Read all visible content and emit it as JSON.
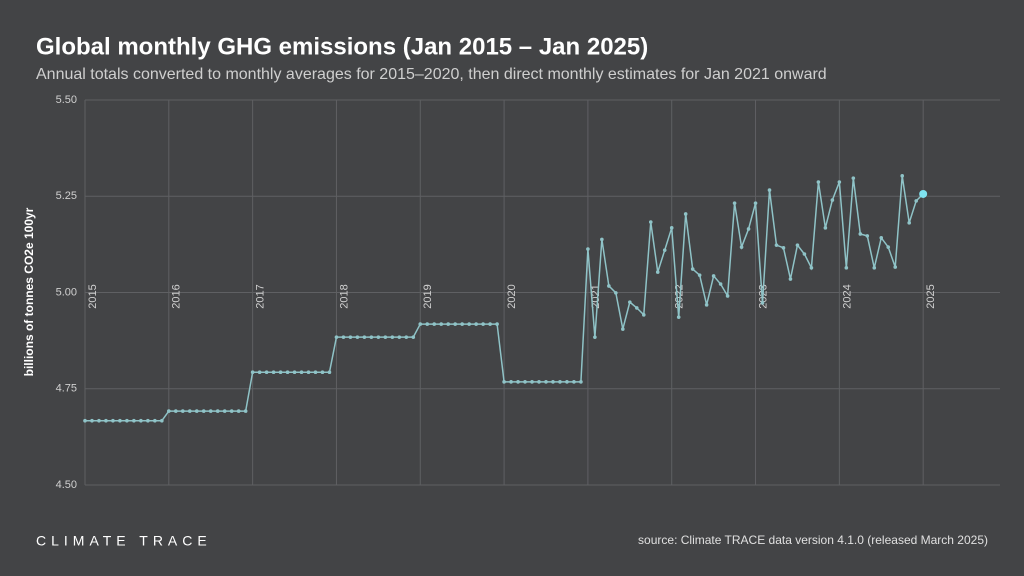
{
  "chart_data": {
    "type": "line",
    "title": "Global monthly GHG emissions (Jan 2015 – Jan 2025)",
    "subtitle": "Annual totals converted to monthly averages for 2015–2020, then direct monthly estimates for Jan 2021 onward",
    "y_label": "billions of tonnes CO2e 100yr",
    "ylim": [
      4.5,
      5.5
    ],
    "yticks": [
      {
        "value": 4.5,
        "label": "4.50"
      },
      {
        "value": 4.75,
        "label": "4.75"
      },
      {
        "value": 5,
        "label": "5.00"
      },
      {
        "value": 5.25,
        "label": "5.25"
      },
      {
        "value": 5.5,
        "label": "5.50"
      }
    ],
    "xlim": [
      "2015-01",
      "2025-12"
    ],
    "xticks": [
      {
        "value": "2015-01",
        "label": "2015"
      },
      {
        "value": "2016-01",
        "label": "2016"
      },
      {
        "value": "2017-01",
        "label": "2017"
      },
      {
        "value": "2018-01",
        "label": "2018"
      },
      {
        "value": "2019-01",
        "label": "2019"
      },
      {
        "value": "2020-01",
        "label": "2020"
      },
      {
        "value": "2021-01",
        "label": "2021"
      },
      {
        "value": "2022-01",
        "label": "2022"
      },
      {
        "value": "2023-01",
        "label": "2023"
      },
      {
        "value": "2024-01",
        "label": "2024"
      },
      {
        "value": "2025-01",
        "label": "2025"
      }
    ],
    "grid": true,
    "color": "#8fc3c7",
    "highlight_last_color": "#7fe3f0",
    "x": [
      "2015-01",
      "2015-02",
      "2015-03",
      "2015-04",
      "2015-05",
      "2015-06",
      "2015-07",
      "2015-08",
      "2015-09",
      "2015-10",
      "2015-11",
      "2015-12",
      "2016-01",
      "2016-02",
      "2016-03",
      "2016-04",
      "2016-05",
      "2016-06",
      "2016-07",
      "2016-08",
      "2016-09",
      "2016-10",
      "2016-11",
      "2016-12",
      "2017-01",
      "2017-02",
      "2017-03",
      "2017-04",
      "2017-05",
      "2017-06",
      "2017-07",
      "2017-08",
      "2017-09",
      "2017-10",
      "2017-11",
      "2017-12",
      "2018-01",
      "2018-02",
      "2018-03",
      "2018-04",
      "2018-05",
      "2018-06",
      "2018-07",
      "2018-08",
      "2018-09",
      "2018-10",
      "2018-11",
      "2018-12",
      "2019-01",
      "2019-02",
      "2019-03",
      "2019-04",
      "2019-05",
      "2019-06",
      "2019-07",
      "2019-08",
      "2019-09",
      "2019-10",
      "2019-11",
      "2019-12",
      "2020-01",
      "2020-02",
      "2020-03",
      "2020-04",
      "2020-05",
      "2020-06",
      "2020-07",
      "2020-08",
      "2020-09",
      "2020-10",
      "2020-11",
      "2020-12",
      "2021-01",
      "2021-02",
      "2021-03",
      "2021-04",
      "2021-05",
      "2021-06",
      "2021-07",
      "2021-08",
      "2021-09",
      "2021-10",
      "2021-11",
      "2021-12",
      "2022-01",
      "2022-02",
      "2022-03",
      "2022-04",
      "2022-05",
      "2022-06",
      "2022-07",
      "2022-08",
      "2022-09",
      "2022-10",
      "2022-11",
      "2022-12",
      "2023-01",
      "2023-02",
      "2023-03",
      "2023-04",
      "2023-05",
      "2023-06",
      "2023-07",
      "2023-08",
      "2023-09",
      "2023-10",
      "2023-11",
      "2023-12",
      "2024-01",
      "2024-02",
      "2024-03",
      "2024-04",
      "2024-05",
      "2024-06",
      "2024-07",
      "2024-08",
      "2024-09",
      "2024-10",
      "2024-11",
      "2024-12",
      "2025-01"
    ],
    "values": [
      4.667,
      4.667,
      4.667,
      4.667,
      4.667,
      4.667,
      4.667,
      4.667,
      4.667,
      4.667,
      4.667,
      4.667,
      4.692,
      4.692,
      4.692,
      4.692,
      4.692,
      4.692,
      4.692,
      4.692,
      4.692,
      4.692,
      4.692,
      4.692,
      4.793,
      4.793,
      4.793,
      4.793,
      4.793,
      4.793,
      4.793,
      4.793,
      4.793,
      4.793,
      4.793,
      4.793,
      4.884,
      4.884,
      4.884,
      4.884,
      4.884,
      4.884,
      4.884,
      4.884,
      4.884,
      4.884,
      4.884,
      4.884,
      4.918,
      4.918,
      4.918,
      4.918,
      4.918,
      4.918,
      4.918,
      4.918,
      4.918,
      4.918,
      4.918,
      4.918,
      4.768,
      4.768,
      4.768,
      4.768,
      4.768,
      4.768,
      4.768,
      4.768,
      4.768,
      4.768,
      4.768,
      4.768,
      5.113,
      4.884,
      5.138,
      5.017,
      4.999,
      4.905,
      4.975,
      4.96,
      4.942,
      5.183,
      5.053,
      5.11,
      5.168,
      4.936,
      5.204,
      5.061,
      5.045,
      4.968,
      5.043,
      5.022,
      4.991,
      5.232,
      5.118,
      5.165,
      5.232,
      4.973,
      5.266,
      5.123,
      5.116,
      5.035,
      5.123,
      5.1,
      5.064,
      5.287,
      5.168,
      5.24,
      5.287,
      5.064,
      5.297,
      5.152,
      5.147,
      5.064,
      5.142,
      5.118,
      5.066,
      5.303,
      5.181,
      5.238,
      5.256
    ]
  },
  "footer": {
    "logo": "CLIMATE TRACE",
    "source": "source: Climate TRACE data version 4.1.0 (released March 2025)"
  }
}
